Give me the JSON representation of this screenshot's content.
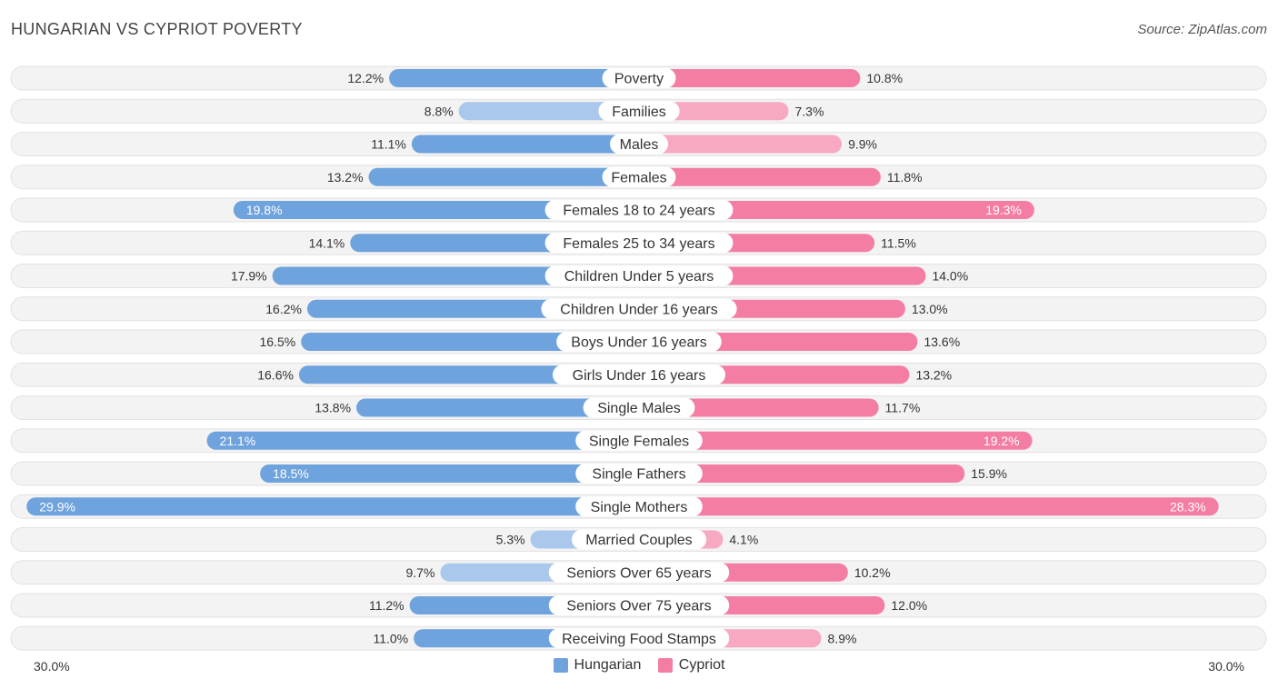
{
  "title": "HUNGARIAN VS CYPRIOT POVERTY",
  "source": "Source: ZipAtlas.com",
  "colors": {
    "left": "#6fa3dd",
    "right": "#f47ea3",
    "left_light": "#a9c8ec",
    "right_light": "#f7a9c2"
  },
  "legend": {
    "left": "Hungarian",
    "right": "Cypriot"
  },
  "axis": {
    "left_label": "30.0%",
    "right_label": "30.0%"
  },
  "chart_data": {
    "type": "bar",
    "orientation": "horizontal-diverging",
    "title": "HUNGARIAN VS CYPRIOT POVERTY",
    "xlim": [
      -30,
      30
    ],
    "categories": [
      "Poverty",
      "Families",
      "Males",
      "Females",
      "Females 18 to 24 years",
      "Females 25 to 34 years",
      "Children Under 5 years",
      "Children Under 16 years",
      "Boys Under 16 years",
      "Girls Under 16 years",
      "Single Males",
      "Single Females",
      "Single Fathers",
      "Single Mothers",
      "Married Couples",
      "Seniors Over 65 years",
      "Seniors Over 75 years",
      "Receiving Food Stamps"
    ],
    "series": [
      {
        "name": "Hungarian",
        "values": [
          12.2,
          8.8,
          11.1,
          13.2,
          19.8,
          14.1,
          17.9,
          16.2,
          16.5,
          16.6,
          13.8,
          21.1,
          18.5,
          29.9,
          5.3,
          9.7,
          11.2,
          11.0
        ],
        "labels": [
          "12.2%",
          "8.8%",
          "11.1%",
          "13.2%",
          "19.8%",
          "14.1%",
          "17.9%",
          "16.2%",
          "16.5%",
          "16.6%",
          "13.8%",
          "21.1%",
          "18.5%",
          "29.9%",
          "5.3%",
          "9.7%",
          "11.2%",
          "11.0%"
        ]
      },
      {
        "name": "Cypriot",
        "values": [
          10.8,
          7.3,
          9.9,
          11.8,
          19.3,
          11.5,
          14.0,
          13.0,
          13.6,
          13.2,
          11.7,
          19.2,
          15.9,
          28.3,
          4.1,
          10.2,
          12.0,
          8.9
        ],
        "labels": [
          "10.8%",
          "7.3%",
          "9.9%",
          "11.8%",
          "19.3%",
          "11.5%",
          "14.0%",
          "13.0%",
          "13.6%",
          "13.2%",
          "11.7%",
          "19.2%",
          "15.9%",
          "28.3%",
          "4.1%",
          "10.2%",
          "12.0%",
          "8.9%"
        ]
      }
    ]
  }
}
